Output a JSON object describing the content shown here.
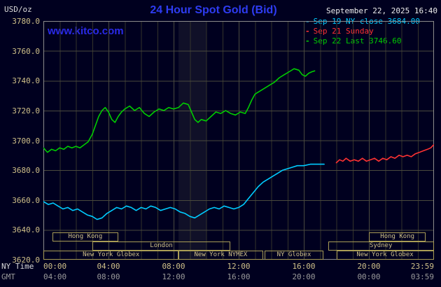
{
  "header": {
    "units": "USD/oz",
    "title": "24 Hour Spot Gold (Bid)",
    "datetime": "September 22, 2025 16:40",
    "watermark": "www.kitco.com"
  },
  "legend": [
    {
      "marker": "-",
      "label": "Sep 19 NY close 3684.00",
      "color": "#00ccff"
    },
    {
      "marker": "-",
      "label": "Sep 21 Sunday",
      "color": "#ff3232"
    },
    {
      "marker": "-",
      "label": "Sep 22 Last 3746.60",
      "color": "#00cc00"
    }
  ],
  "axes": {
    "y_ticks": [
      "3780.0",
      "3760.0",
      "3740.0",
      "3720.0",
      "3700.0",
      "3680.0",
      "3660.0",
      "3640.0",
      "3620.0"
    ],
    "tick_hours": [
      0,
      4,
      8,
      12,
      16,
      20,
      24
    ],
    "x_rows": [
      {
        "label": "NY Time",
        "label_color": "#d9d9d9",
        "tick_color": "#cfc089",
        "ticks": [
          "00:00",
          "04:00",
          "08:00",
          "12:00",
          "16:00",
          "20:00",
          "23:59"
        ]
      },
      {
        "label": "GMT",
        "label_color": "#9a9a9a",
        "tick_color": "#9a9a9a",
        "ticks": [
          "04:00",
          "08:00",
          "12:00",
          "16:00",
          "20:00",
          "00:00",
          "03:59"
        ]
      }
    ]
  },
  "sessions": [
    {
      "row": 0,
      "label": "Hong Kong",
      "start": 0.55,
      "end": 4.6
    },
    {
      "row": 0,
      "label": "Hong Kong",
      "start": 20.0,
      "end": 23.5
    },
    {
      "row": 1,
      "label": "London",
      "start": 3.0,
      "end": 11.5
    },
    {
      "row": 1,
      "label": "Sydney",
      "start": 17.5,
      "end": 23.98
    },
    {
      "row": 2,
      "label": "New York Globex",
      "start": 0.02,
      "end": 8.3
    },
    {
      "row": 2,
      "label": "New York NYMEX",
      "start": 8.3,
      "end": 13.5
    },
    {
      "row": 2,
      "label": "NY Globex",
      "start": 13.6,
      "end": 17.2
    },
    {
      "row": 2,
      "label": "New York Globex",
      "start": 18.0,
      "end": 23.98
    }
  ],
  "chart_data": {
    "type": "line",
    "title": "24 Hour Spot Gold (Bid)",
    "xlabel": "NY Time / GMT",
    "ylabel": "USD/oz",
    "xlim": [
      0,
      24
    ],
    "ylim": [
      3620,
      3780
    ],
    "y_tick_step": 20,
    "grid": true,
    "legend_position": "top-right",
    "band_hours": [
      8.3,
      10.0
    ],
    "band_color": "rgba(205,205,150,0.08)",
    "grid_minor_color": "#34342b",
    "grid_major_color": "#4a4a3e",
    "border_color": "#8c8c8c",
    "series": [
      {
        "name": "Sep 19 NY close",
        "color": "#00ccff",
        "close": 3684.0,
        "points": [
          [
            0,
            3659
          ],
          [
            0.3,
            3657
          ],
          [
            0.6,
            3658
          ],
          [
            0.9,
            3656
          ],
          [
            1.2,
            3654
          ],
          [
            1.5,
            3655
          ],
          [
            1.8,
            3653
          ],
          [
            2.1,
            3654
          ],
          [
            2.4,
            3652
          ],
          [
            2.7,
            3650
          ],
          [
            3,
            3649
          ],
          [
            3.3,
            3647
          ],
          [
            3.6,
            3648
          ],
          [
            3.9,
            3651
          ],
          [
            4.2,
            3653
          ],
          [
            4.5,
            3655
          ],
          [
            4.8,
            3654
          ],
          [
            5.1,
            3656
          ],
          [
            5.4,
            3655
          ],
          [
            5.7,
            3653
          ],
          [
            6,
            3655
          ],
          [
            6.3,
            3654
          ],
          [
            6.6,
            3656
          ],
          [
            6.9,
            3655
          ],
          [
            7.2,
            3653
          ],
          [
            7.5,
            3654
          ],
          [
            7.8,
            3655
          ],
          [
            8.1,
            3654
          ],
          [
            8.4,
            3652
          ],
          [
            8.7,
            3651
          ],
          [
            9,
            3649
          ],
          [
            9.3,
            3648
          ],
          [
            9.6,
            3650
          ],
          [
            9.9,
            3652
          ],
          [
            10.2,
            3654
          ],
          [
            10.5,
            3655
          ],
          [
            10.8,
            3654
          ],
          [
            11.1,
            3656
          ],
          [
            11.4,
            3655
          ],
          [
            11.7,
            3654
          ],
          [
            12,
            3655
          ],
          [
            12.3,
            3657
          ],
          [
            12.6,
            3661
          ],
          [
            12.9,
            3665
          ],
          [
            13.2,
            3669
          ],
          [
            13.5,
            3672
          ],
          [
            13.8,
            3674
          ],
          [
            14.1,
            3676
          ],
          [
            14.4,
            3678
          ],
          [
            14.7,
            3680
          ],
          [
            15,
            3681
          ],
          [
            15.3,
            3682
          ],
          [
            15.6,
            3683
          ],
          [
            16,
            3683
          ],
          [
            16.4,
            3684
          ],
          [
            16.8,
            3684
          ],
          [
            17.25,
            3684
          ]
        ]
      },
      {
        "name": "Sep 21 Sunday",
        "color": "#ff3232",
        "points": [
          [
            18,
            3685
          ],
          [
            18.2,
            3687
          ],
          [
            18.4,
            3686
          ],
          [
            18.6,
            3688
          ],
          [
            18.85,
            3686
          ],
          [
            19.1,
            3687
          ],
          [
            19.35,
            3686
          ],
          [
            19.6,
            3688
          ],
          [
            19.85,
            3686
          ],
          [
            20.1,
            3687
          ],
          [
            20.35,
            3688
          ],
          [
            20.6,
            3686
          ],
          [
            20.85,
            3688
          ],
          [
            21.1,
            3687
          ],
          [
            21.35,
            3689
          ],
          [
            21.6,
            3688
          ],
          [
            21.85,
            3690
          ],
          [
            22.1,
            3689
          ],
          [
            22.35,
            3690
          ],
          [
            22.6,
            3689
          ],
          [
            22.85,
            3691
          ],
          [
            23.1,
            3692
          ],
          [
            23.35,
            3693
          ],
          [
            23.6,
            3694
          ],
          [
            23.8,
            3695
          ],
          [
            23.98,
            3697
          ]
        ]
      },
      {
        "name": "Sep 22 Last",
        "color": "#00cc00",
        "last": 3746.6,
        "points": [
          [
            0,
            3695
          ],
          [
            0.25,
            3692
          ],
          [
            0.5,
            3694
          ],
          [
            0.75,
            3693
          ],
          [
            1,
            3695
          ],
          [
            1.25,
            3694
          ],
          [
            1.5,
            3696
          ],
          [
            1.75,
            3695
          ],
          [
            2,
            3696
          ],
          [
            2.25,
            3695
          ],
          [
            2.5,
            3697
          ],
          [
            2.75,
            3699
          ],
          [
            3,
            3704
          ],
          [
            3.2,
            3710
          ],
          [
            3.4,
            3716
          ],
          [
            3.6,
            3720
          ],
          [
            3.8,
            3722
          ],
          [
            4,
            3719
          ],
          [
            4.2,
            3714
          ],
          [
            4.4,
            3712
          ],
          [
            4.6,
            3716
          ],
          [
            4.8,
            3719
          ],
          [
            5,
            3721
          ],
          [
            5.3,
            3723
          ],
          [
            5.6,
            3720
          ],
          [
            5.9,
            3722
          ],
          [
            6.2,
            3718
          ],
          [
            6.5,
            3716
          ],
          [
            6.8,
            3719
          ],
          [
            7.1,
            3721
          ],
          [
            7.4,
            3720
          ],
          [
            7.7,
            3722
          ],
          [
            8,
            3721
          ],
          [
            8.3,
            3722
          ],
          [
            8.6,
            3725
          ],
          [
            8.9,
            3724
          ],
          [
            9.1,
            3719
          ],
          [
            9.3,
            3714
          ],
          [
            9.5,
            3712
          ],
          [
            9.7,
            3714
          ],
          [
            10,
            3713
          ],
          [
            10.3,
            3716
          ],
          [
            10.6,
            3719
          ],
          [
            10.9,
            3718
          ],
          [
            11.2,
            3720
          ],
          [
            11.5,
            3718
          ],
          [
            11.8,
            3717
          ],
          [
            12.1,
            3719
          ],
          [
            12.4,
            3718
          ],
          [
            12.6,
            3722
          ],
          [
            12.8,
            3727
          ],
          [
            13,
            3731
          ],
          [
            13.3,
            3733
          ],
          [
            13.6,
            3735
          ],
          [
            13.9,
            3737
          ],
          [
            14.2,
            3739
          ],
          [
            14.5,
            3742
          ],
          [
            14.8,
            3744
          ],
          [
            15.1,
            3746
          ],
          [
            15.4,
            3748
          ],
          [
            15.7,
            3747
          ],
          [
            15.9,
            3744
          ],
          [
            16.1,
            3743
          ],
          [
            16.3,
            3745
          ],
          [
            16.5,
            3746
          ],
          [
            16.67,
            3746.6
          ]
        ]
      }
    ]
  }
}
